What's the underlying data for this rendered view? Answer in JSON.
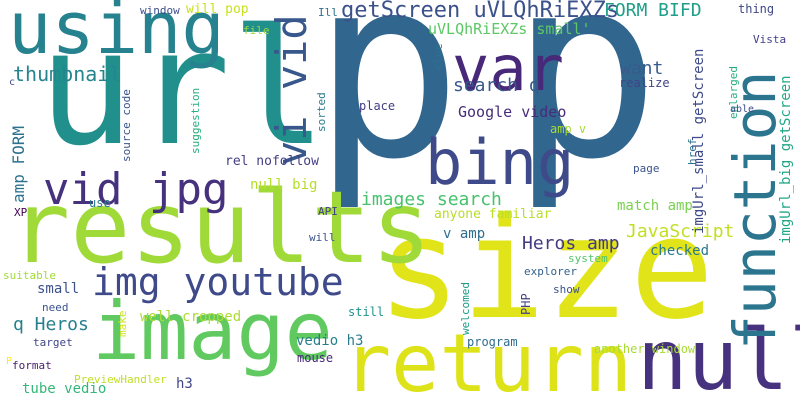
{
  "words": [
    {
      "text": "p",
      "color": "#31668e"
    },
    {
      "text": "p",
      "color": "#31668e"
    },
    {
      "text": "url",
      "color": "#21908d"
    },
    {
      "text": "size",
      "color": "#e1e419"
    },
    {
      "text": "results",
      "color": "#a0da39"
    },
    {
      "text": "using",
      "color": "#26828e"
    },
    {
      "text": "image",
      "color": "#60ca60"
    },
    {
      "text": "return",
      "color": "#dde318"
    },
    {
      "text": "null",
      "color": "#46327e"
    },
    {
      "text": "bing",
      "color": "#3e4a89"
    },
    {
      "text": "var",
      "color": "#482878"
    },
    {
      "text": "function",
      "color": "#2b758e"
    },
    {
      "text": "vi vid",
      "color": "#38588c"
    },
    {
      "text": "vid jpg",
      "color": "#46317e"
    },
    {
      "text": "img youtube",
      "color": "#3e4a89"
    },
    {
      "text": "getScreen uVLQhRiEXZs",
      "color": "#3b518b"
    },
    {
      "text": "thumbnail",
      "color": "#25858e"
    },
    {
      "text": "uVLQhRiEXZs small'",
      "color": "#5cc863"
    },
    {
      "text": "FORM BIFD",
      "color": "#1f9e89"
    },
    {
      "text": "want",
      "color": "#375b8d"
    },
    {
      "text": "search q",
      "color": "#38588c"
    },
    {
      "text": "Google video",
      "color": "#472c7a"
    },
    {
      "text": "images search",
      "color": "#48c16e"
    },
    {
      "text": "JavaScript",
      "color": "#c2df23"
    },
    {
      "text": "Heros amp",
      "color": "#443a83"
    },
    {
      "text": "amp FORM",
      "color": "#2c728e"
    },
    {
      "text": "q Heros",
      "color": "#27808e"
    },
    {
      "text": "vedio h3",
      "color": "#277f8e"
    },
    {
      "text": "well cropped",
      "color": "#addc30"
    },
    {
      "text": "small",
      "color": "#3b528b"
    },
    {
      "text": "tube vedio",
      "color": "#35b779"
    },
    {
      "text": "h3",
      "color": "#404688"
    },
    {
      "text": "imgUrl_small getScreen",
      "color": "#3e4989"
    },
    {
      "text": "imgUrl_big getScreen",
      "color": "#22a785"
    },
    {
      "text": "enlarged",
      "color": "#29af7f"
    },
    {
      "text": "match amp",
      "color": "#7ad151"
    },
    {
      "text": "v amp",
      "color": "#2e6e8e"
    },
    {
      "text": "checked",
      "color": "#2a788e"
    },
    {
      "text": "realize",
      "color": "#414487"
    },
    {
      "text": "rel nofollow",
      "color": "#433e85"
    },
    {
      "text": "null big",
      "color": "#b5de2b"
    },
    {
      "text": "amp v",
      "color": "#a5db36"
    },
    {
      "text": "suggestion",
      "color": "#2ab07f"
    },
    {
      "text": "place",
      "color": "#433d84"
    },
    {
      "text": "source code",
      "color": "#3a548c"
    },
    {
      "text": "window",
      "color": "#3d4e8a"
    },
    {
      "text": "will pop",
      "color": "#c8e020"
    },
    {
      "text": "thing",
      "color": "#3f4788"
    },
    {
      "text": "Vista",
      "color": "#424086"
    },
    {
      "text": "able",
      "color": "#3e4c8a"
    },
    {
      "text": "file",
      "color": "#98d83e"
    },
    {
      "text": "Ill",
      "color": "#2d708e"
    },
    {
      "text": "clue",
      "color": "#2c728e"
    },
    {
      "text": "sorted",
      "color": "#29798e"
    },
    {
      "text": "page",
      "color": "#3b528b"
    },
    {
      "text": "href",
      "color": "#2c728e"
    },
    {
      "text": "anyone familiar",
      "color": "#b8de29"
    },
    {
      "text": "API",
      "color": "#424086"
    },
    {
      "text": "use",
      "color": "#2a788e"
    },
    {
      "text": "XP",
      "color": "#440154"
    },
    {
      "text": "will",
      "color": "#3b528b"
    },
    {
      "text": "system",
      "color": "#50c46a"
    },
    {
      "text": "suitable",
      "color": "#a2da37"
    },
    {
      "text": "explorer",
      "color": "#34618d"
    },
    {
      "text": "show",
      "color": "#3b518b"
    },
    {
      "text": "need",
      "color": "#3a538b"
    },
    {
      "text": "make",
      "color": "#d2e21b"
    },
    {
      "text": "target",
      "color": "#404588"
    },
    {
      "text": "still",
      "color": "#1f968b"
    },
    {
      "text": "welcomed",
      "color": "#1e9c89"
    },
    {
      "text": "PHP",
      "color": "#433e85"
    },
    {
      "text": "mouse",
      "color": "#472a7a"
    },
    {
      "text": "program",
      "color": "#2e6d8e"
    },
    {
      "text": "another window",
      "color": "#a8db34"
    },
    {
      "text": "format",
      "color": "#481e70"
    },
    {
      "text": "PreviewHandler",
      "color": "#c0df25"
    },
    {
      "text": "c",
      "color": "#3e4a89"
    },
    {
      "text": "P",
      "color": "#fde725"
    }
  ]
}
